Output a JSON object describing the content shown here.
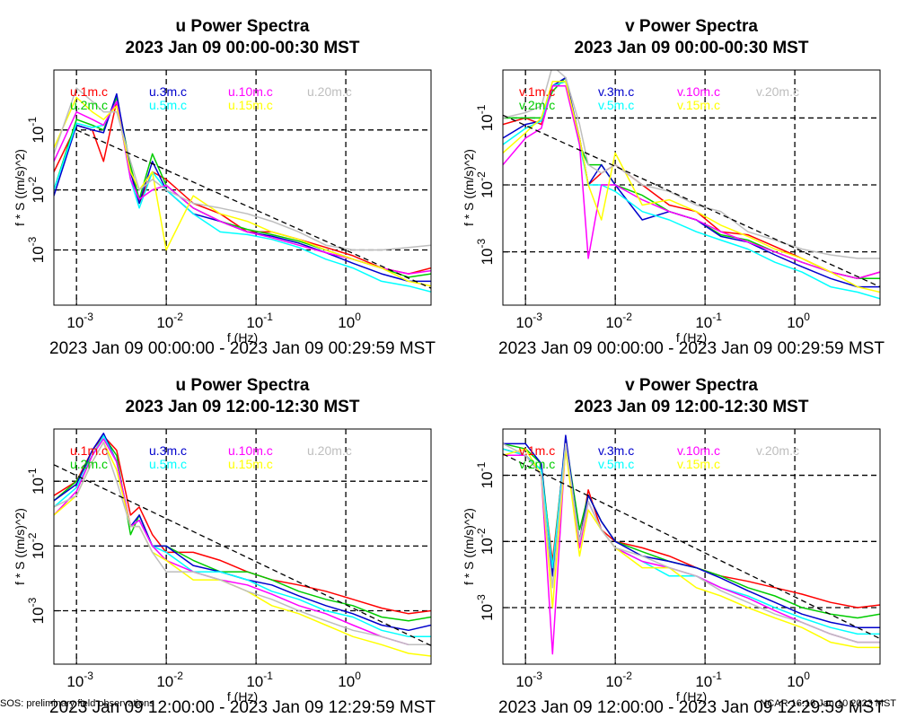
{
  "chart_data": [
    {
      "type": "line",
      "title": "u Power Spectra",
      "subtitle": "2023 Jan 09 00:00-00:30 MST",
      "xlabel": "f (Hz)",
      "ylabel": "f * S ((m/s)^2)",
      "caption": "2023 Jan 09 00:00:00 - 2023 Jan 09 00:29:59 MST",
      "log_x": true,
      "log_y": true,
      "grid": true,
      "xlim": [
        0.00056,
        8.9
      ],
      "ylim": [
        0.00012,
        1.0
      ],
      "xticks": [
        {
          "value": 0.001,
          "label": "10",
          "exponent": "-3"
        },
        {
          "value": 0.01,
          "label": "10",
          "exponent": "-2"
        },
        {
          "value": 0.1,
          "label": "10",
          "exponent": "-1"
        },
        {
          "value": 1,
          "label": "10",
          "exponent": "0"
        }
      ],
      "yticks": [
        {
          "value": 0.001,
          "label": "10",
          "exponent": "-3"
        },
        {
          "value": 0.01,
          "label": "10",
          "exponent": "-2"
        },
        {
          "value": 0.1,
          "label": "10",
          "exponent": "-1"
        }
      ],
      "x": [
        0.00056,
        0.001,
        0.0015,
        0.002,
        0.0028,
        0.004,
        0.005,
        0.007,
        0.01,
        0.02,
        0.04,
        0.08,
        0.15,
        0.3,
        0.6,
        1.2,
        2.5,
        5,
        8.9
      ],
      "series": [
        {
          "name": "u.1m.c",
          "color": "#ff0000",
          "values": [
            0.02,
            0.12,
            0.1,
            0.03,
            0.3,
            0.02,
            0.006,
            0.02,
            0.015,
            0.006,
            0.004,
            0.002,
            0.002,
            0.0015,
            0.0011,
            0.0008,
            0.0005,
            0.0004,
            0.0005
          ]
        },
        {
          "name": "u.2m.c",
          "color": "#00cc00",
          "values": [
            0.01,
            0.15,
            0.12,
            0.1,
            0.35,
            0.025,
            0.007,
            0.04,
            0.012,
            0.005,
            0.003,
            0.0022,
            0.0018,
            0.0014,
            0.001,
            0.0007,
            0.0005,
            0.00035,
            0.0004
          ]
        },
        {
          "name": "u.3m.c",
          "color": "#0000cc",
          "values": [
            0.008,
            0.12,
            0.1,
            0.09,
            0.4,
            0.02,
            0.006,
            0.03,
            0.01,
            0.004,
            0.003,
            0.002,
            0.0017,
            0.0013,
            0.0009,
            0.0006,
            0.0004,
            0.0003,
            0.0003
          ]
        },
        {
          "name": "u.5m.c",
          "color": "#00ffff",
          "values": [
            0.01,
            0.13,
            0.11,
            0.12,
            0.3,
            0.015,
            0.005,
            0.02,
            0.01,
            0.004,
            0.002,
            0.0018,
            0.0015,
            0.0011,
            0.0007,
            0.0005,
            0.0003,
            0.00025,
            0.0002
          ]
        },
        {
          "name": "u.10m.c",
          "color": "#ff00ff",
          "values": [
            0.03,
            0.2,
            0.15,
            0.12,
            0.3,
            0.015,
            0.007,
            0.01,
            0.012,
            0.005,
            0.003,
            0.002,
            0.0016,
            0.0012,
            0.0009,
            0.0007,
            0.0005,
            0.0004,
            0.00045
          ]
        },
        {
          "name": "u.15m.c",
          "color": "#ffff00",
          "values": [
            0.05,
            0.35,
            0.2,
            0.15,
            0.25,
            0.02,
            0.01,
            0.02,
            0.001,
            0.008,
            0.004,
            0.003,
            0.002,
            0.0015,
            0.001,
            0.0007,
            0.0005,
            0.0003,
            0.00025
          ]
        },
        {
          "name": "u.20m.c",
          "color": "#bebebe",
          "values": [
            0.04,
            0.5,
            0.3,
            0.2,
            0.2,
            0.03,
            0.01,
            0.015,
            0.01,
            0.006,
            0.005,
            0.004,
            0.003,
            0.002,
            0.0012,
            0.001,
            0.001,
            0.0011,
            0.0012
          ]
        }
      ],
      "reference_line": {
        "x": [
          0.001,
          8.9
        ],
        "values": [
          0.1,
          0.00023
        ]
      }
    },
    {
      "type": "line",
      "title": "v Power Spectra",
      "subtitle": "2023 Jan 09 00:00-00:30 MST",
      "xlabel": "f (Hz)",
      "ylabel": "f * S ((m/s)^2)",
      "caption": "2023 Jan 09 00:00:00 - 2023 Jan 09 00:29:59 MST",
      "log_x": true,
      "log_y": true,
      "grid": true,
      "xlim": [
        0.00056,
        8.9
      ],
      "ylim": [
        0.00016,
        0.52
      ],
      "xticks": [
        {
          "value": 0.001,
          "label": "10",
          "exponent": "-3"
        },
        {
          "value": 0.01,
          "label": "10",
          "exponent": "-2"
        },
        {
          "value": 0.1,
          "label": "10",
          "exponent": "-1"
        },
        {
          "value": 1,
          "label": "10",
          "exponent": "0"
        }
      ],
      "yticks": [
        {
          "value": 0.001,
          "label": "10",
          "exponent": "-3"
        },
        {
          "value": 0.01,
          "label": "10",
          "exponent": "-2"
        },
        {
          "value": 0.1,
          "label": "10",
          "exponent": "-1"
        }
      ],
      "x": [
        0.00056,
        0.001,
        0.0015,
        0.002,
        0.0028,
        0.004,
        0.005,
        0.007,
        0.01,
        0.02,
        0.04,
        0.08,
        0.15,
        0.3,
        0.6,
        1.2,
        2.5,
        5,
        8.9
      ],
      "series": [
        {
          "name": "v.1m.c",
          "color": "#ff0000",
          "values": [
            0.08,
            0.1,
            0.08,
            0.3,
            0.35,
            0.05,
            0.01,
            0.015,
            0.02,
            0.01,
            0.005,
            0.004,
            0.002,
            0.0018,
            0.0012,
            0.0008,
            0.0005,
            0.0004,
            0.0005
          ]
        },
        {
          "name": "v.2m.c",
          "color": "#00cc00",
          "values": [
            0.1,
            0.1,
            0.1,
            0.25,
            0.4,
            0.04,
            0.02,
            0.02,
            0.01,
            0.007,
            0.004,
            0.003,
            0.0018,
            0.0015,
            0.001,
            0.0007,
            0.0005,
            0.0004,
            0.0004
          ]
        },
        {
          "name": "v.3m.c",
          "color": "#0000cc",
          "values": [
            0.05,
            0.08,
            0.09,
            0.3,
            0.4,
            0.05,
            0.01,
            0.02,
            0.01,
            0.003,
            0.004,
            0.003,
            0.0017,
            0.0014,
            0.0009,
            0.0006,
            0.0004,
            0.0003,
            0.0003
          ]
        },
        {
          "name": "v.5m.c",
          "color": "#00ffff",
          "values": [
            0.04,
            0.07,
            0.09,
            0.3,
            0.35,
            0.04,
            0.01,
            0.01,
            0.008,
            0.004,
            0.003,
            0.002,
            0.0015,
            0.0011,
            0.0007,
            0.0005,
            0.0003,
            0.00025,
            0.0002
          ]
        },
        {
          "name": "v.10m.c",
          "color": "#ff00ff",
          "values": [
            0.02,
            0.05,
            0.07,
            0.3,
            0.3,
            0.04,
            0.0008,
            0.01,
            0.01,
            0.006,
            0.004,
            0.003,
            0.002,
            0.0014,
            0.001,
            0.0007,
            0.0005,
            0.0004,
            0.0005
          ]
        },
        {
          "name": "v.15m.c",
          "color": "#ffff00",
          "values": [
            0.03,
            0.06,
            0.1,
            0.35,
            0.35,
            0.05,
            0.01,
            0.003,
            0.03,
            0.005,
            0.006,
            0.004,
            0.0025,
            0.0017,
            0.0011,
            0.0008,
            0.0005,
            0.0003,
            0.00025
          ]
        },
        {
          "name": "v.20m.c",
          "color": "#bebebe",
          "values": [
            0.1,
            0.12,
            0.15,
            0.6,
            0.4,
            0.08,
            0.02,
            0.015,
            0.02,
            0.01,
            0.008,
            0.005,
            0.004,
            0.002,
            0.0015,
            0.0011,
            0.0009,
            0.0008,
            0.0008
          ]
        }
      ],
      "reference_line": {
        "x": [
          0.00056,
          8.9
        ],
        "values": [
          0.11,
          0.0003
        ]
      }
    },
    {
      "type": "line",
      "title": "u Power Spectra",
      "subtitle": "2023 Jan 09 12:00-12:30 MST",
      "xlabel": "f (Hz)",
      "ylabel": "f * S ((m/s)^2)",
      "caption": "2023 Jan 09 12:00:00 - 2023 Jan 09 12:29:59 MST",
      "log_x": true,
      "log_y": true,
      "grid": true,
      "xlim": [
        0.00056,
        8.9
      ],
      "ylim": [
        0.00015,
        0.64
      ],
      "xticks": [
        {
          "value": 0.001,
          "label": "10",
          "exponent": "-3"
        },
        {
          "value": 0.01,
          "label": "10",
          "exponent": "-2"
        },
        {
          "value": 0.1,
          "label": "10",
          "exponent": "-1"
        },
        {
          "value": 1,
          "label": "10",
          "exponent": "0"
        }
      ],
      "yticks": [
        {
          "value": 0.001,
          "label": "10",
          "exponent": "-3"
        },
        {
          "value": 0.01,
          "label": "10",
          "exponent": "-2"
        },
        {
          "value": 0.1,
          "label": "10",
          "exponent": "-1"
        }
      ],
      "x": [
        0.00056,
        0.001,
        0.0015,
        0.002,
        0.0028,
        0.004,
        0.005,
        0.007,
        0.01,
        0.02,
        0.04,
        0.08,
        0.15,
        0.3,
        0.6,
        1.2,
        2.5,
        5,
        8.9
      ],
      "series": [
        {
          "name": "u.1m.c",
          "color": "#ff0000",
          "values": [
            0.06,
            0.1,
            0.3,
            0.5,
            0.3,
            0.03,
            0.04,
            0.015,
            0.008,
            0.008,
            0.006,
            0.004,
            0.003,
            0.0025,
            0.002,
            0.0015,
            0.0011,
            0.0009,
            0.001
          ]
        },
        {
          "name": "u.2m.c",
          "color": "#00cc00",
          "values": [
            0.05,
            0.1,
            0.25,
            0.5,
            0.25,
            0.015,
            0.03,
            0.01,
            0.01,
            0.006,
            0.004,
            0.004,
            0.003,
            0.002,
            0.0015,
            0.0012,
            0.0008,
            0.0007,
            0.0008
          ]
        },
        {
          "name": "u.3m.c",
          "color": "#0000cc",
          "values": [
            0.05,
            0.09,
            0.3,
            0.55,
            0.2,
            0.02,
            0.03,
            0.01,
            0.01,
            0.005,
            0.004,
            0.003,
            0.0025,
            0.0017,
            0.0012,
            0.0009,
            0.0006,
            0.0005,
            0.0006
          ]
        },
        {
          "name": "u.5m.c",
          "color": "#00ffff",
          "values": [
            0.04,
            0.08,
            0.25,
            0.5,
            0.2,
            0.02,
            0.025,
            0.01,
            0.008,
            0.004,
            0.004,
            0.003,
            0.002,
            0.0015,
            0.001,
            0.0008,
            0.0005,
            0.0004,
            0.0004
          ]
        },
        {
          "name": "u.10m.c",
          "color": "#ff00ff",
          "values": [
            0.03,
            0.07,
            0.25,
            0.45,
            0.2,
            0.02,
            0.025,
            0.01,
            0.006,
            0.004,
            0.003,
            0.0025,
            0.0018,
            0.0012,
            0.0009,
            0.0006,
            0.0004,
            0.0003,
            0.0003
          ]
        },
        {
          "name": "u.15m.c",
          "color": "#ffff00",
          "values": [
            0.03,
            0.06,
            0.2,
            0.4,
            0.15,
            0.02,
            0.02,
            0.008,
            0.006,
            0.003,
            0.003,
            0.002,
            0.0012,
            0.0009,
            0.0006,
            0.0004,
            0.0003,
            0.00022,
            0.0002
          ]
        },
        {
          "name": "u.20m.c",
          "color": "#bebebe",
          "values": [
            0.04,
            0.06,
            0.2,
            0.4,
            0.1,
            0.02,
            0.02,
            0.008,
            0.004,
            0.004,
            0.003,
            0.002,
            0.0015,
            0.001,
            0.0007,
            0.0005,
            0.0004,
            0.0003,
            0.0003
          ]
        }
      ],
      "reference_line": {
        "x": [
          0.00056,
          8.9
        ],
        "values": [
          0.18,
          0.00029
        ]
      }
    },
    {
      "type": "line",
      "title": "v Power Spectra",
      "subtitle": "2023 Jan 09 12:00-12:30 MST",
      "xlabel": "f (Hz)",
      "ylabel": "f * S ((m/s)^2)",
      "caption": "2023 Jan 09 12:00:00 - 2023 Jan 09 12:29:59 MST",
      "log_x": true,
      "log_y": true,
      "grid": true,
      "xlim": [
        0.00056,
        8.9
      ],
      "ylim": [
        0.00014,
        0.5
      ],
      "xticks": [
        {
          "value": 0.001,
          "label": "10",
          "exponent": "-3"
        },
        {
          "value": 0.01,
          "label": "10",
          "exponent": "-2"
        },
        {
          "value": 0.1,
          "label": "10",
          "exponent": "-1"
        },
        {
          "value": 1,
          "label": "10",
          "exponent": "0"
        }
      ],
      "yticks": [
        {
          "value": 0.001,
          "label": "10",
          "exponent": "-3"
        },
        {
          "value": 0.01,
          "label": "10",
          "exponent": "-2"
        },
        {
          "value": 0.1,
          "label": "10",
          "exponent": "-1"
        }
      ],
      "x": [
        0.00056,
        0.001,
        0.0015,
        0.002,
        0.0028,
        0.004,
        0.005,
        0.007,
        0.01,
        0.02,
        0.04,
        0.08,
        0.15,
        0.3,
        0.6,
        1.2,
        2.5,
        5,
        8.9
      ],
      "series": [
        {
          "name": "v.1m.c",
          "color": "#ff0000",
          "values": [
            0.25,
            0.2,
            0.12,
            0.005,
            0.3,
            0.01,
            0.06,
            0.015,
            0.01,
            0.008,
            0.006,
            0.004,
            0.003,
            0.0025,
            0.002,
            0.0016,
            0.0012,
            0.001,
            0.0011
          ]
        },
        {
          "name": "v.2m.c",
          "color": "#00cc00",
          "values": [
            0.3,
            0.25,
            0.15,
            0.004,
            0.35,
            0.015,
            0.05,
            0.02,
            0.01,
            0.007,
            0.005,
            0.004,
            0.003,
            0.002,
            0.0015,
            0.001,
            0.0008,
            0.0007,
            0.0008
          ]
        },
        {
          "name": "v.3m.c",
          "color": "#0000cc",
          "values": [
            0.3,
            0.3,
            0.15,
            0.003,
            0.4,
            0.01,
            0.05,
            0.02,
            0.01,
            0.006,
            0.005,
            0.004,
            0.0028,
            0.0018,
            0.0012,
            0.0008,
            0.0006,
            0.0005,
            0.0005
          ]
        },
        {
          "name": "v.5m.c",
          "color": "#00ffff",
          "values": [
            0.25,
            0.2,
            0.12,
            0.004,
            0.3,
            0.01,
            0.04,
            0.015,
            0.008,
            0.005,
            0.003,
            0.003,
            0.002,
            0.0015,
            0.001,
            0.0007,
            0.0005,
            0.0004,
            0.0004
          ]
        },
        {
          "name": "v.10m.c",
          "color": "#ff00ff",
          "values": [
            0.2,
            0.2,
            0.1,
            0.0002,
            0.3,
            0.008,
            0.04,
            0.015,
            0.008,
            0.005,
            0.004,
            0.003,
            0.002,
            0.0014,
            0.0009,
            0.0006,
            0.0004,
            0.0003,
            0.0003
          ]
        },
        {
          "name": "v.15m.c",
          "color": "#ffff00",
          "values": [
            0.2,
            0.25,
            0.1,
            0.001,
            0.25,
            0.006,
            0.03,
            0.015,
            0.008,
            0.004,
            0.004,
            0.002,
            0.0015,
            0.001,
            0.0007,
            0.0005,
            0.0003,
            0.00025,
            0.00025
          ]
        },
        {
          "name": "v.20m.c",
          "color": "#bebebe",
          "values": [
            0.3,
            0.2,
            0.1,
            0.002,
            0.3,
            0.01,
            0.04,
            0.015,
            0.008,
            0.006,
            0.004,
            0.003,
            0.0018,
            0.0012,
            0.0008,
            0.0006,
            0.0004,
            0.0003,
            0.0003
          ]
        }
      ],
      "reference_line": {
        "x": [
          0.00056,
          8.9
        ],
        "values": [
          0.21,
          0.00034
        ]
      }
    }
  ],
  "footer": {
    "left": "SOS: preliminary field observations",
    "right": "NCAR 16:16 Jan 10 2023 MST"
  }
}
